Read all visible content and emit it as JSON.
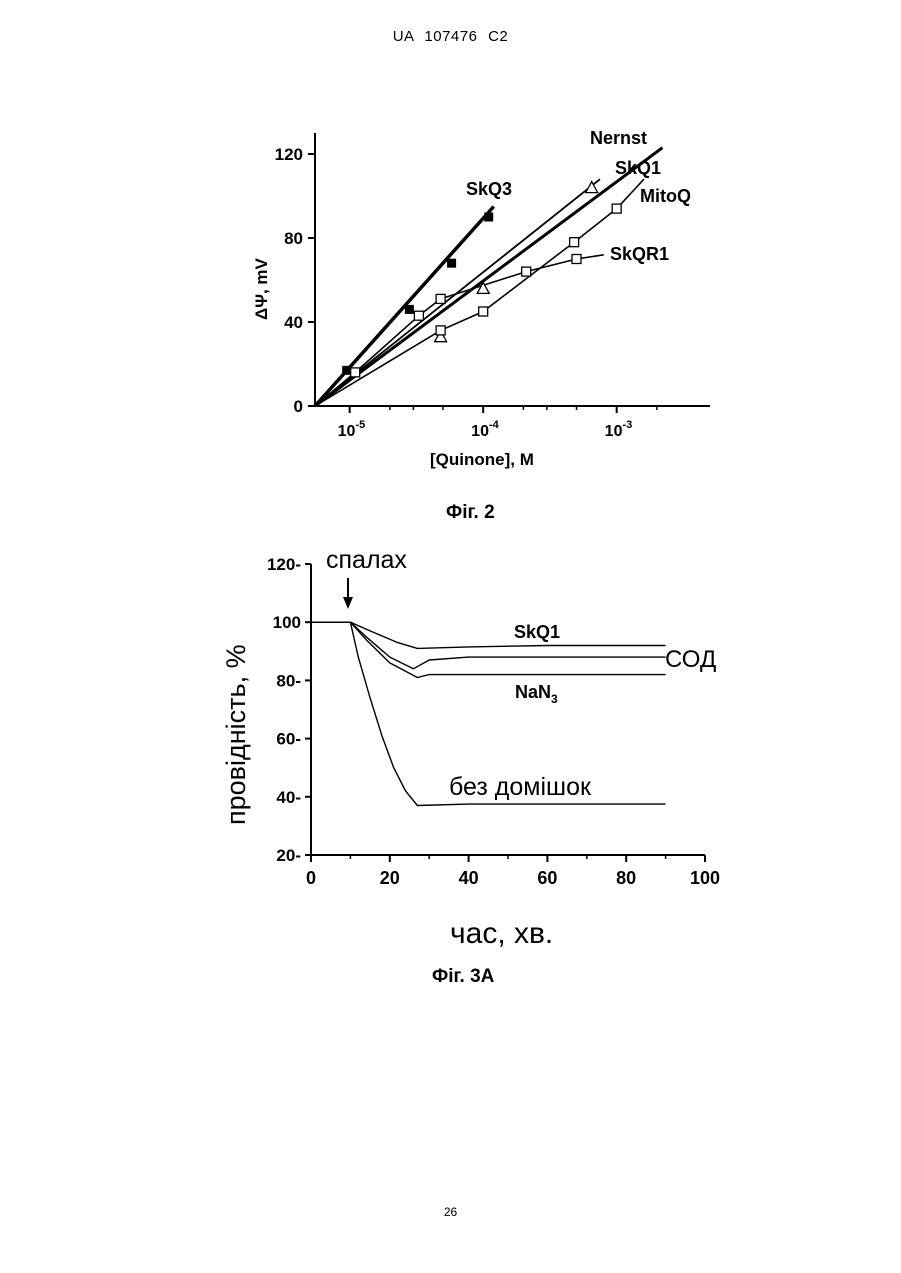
{
  "header": {
    "text": "UA   107476   C2"
  },
  "page_number": "26",
  "figures": {
    "fig2_caption": "Фіг. 2",
    "fig3a_caption": "Фіг. 3А"
  },
  "chart_data": [
    {
      "type": "scatter",
      "xscale": "log",
      "xlim": [
        5.5e-06,
        0.005
      ],
      "ylim": [
        0,
        130
      ],
      "ylabel": "ΔΨ, mV",
      "xlabel": "[Quinone], M",
      "x_ticks": [
        "10-5",
        "10-4",
        "10-3"
      ],
      "y_ticks": [
        "0",
        "40",
        "80",
        "120"
      ],
      "series": [
        {
          "name": "Nernst",
          "style": "line-thick",
          "x": [
            5.5e-06,
            0.0022
          ],
          "y": [
            0,
            123
          ]
        },
        {
          "name": "SkQ3",
          "style": "square-filled",
          "points": [
            [
              9.5e-06,
              17
            ],
            [
              2.8e-05,
              46
            ],
            [
              5.8e-05,
              68
            ],
            [
              0.00011,
              90
            ]
          ]
        },
        {
          "name": "SkQ1",
          "style": "triangle-open",
          "points": [
            [
              4.8e-05,
              33
            ],
            [
              0.0001,
              56
            ],
            [
              0.00065,
              104
            ]
          ]
        },
        {
          "name": "MitoQ",
          "style": "square-open",
          "points": [
            [
              4.8e-05,
              36
            ],
            [
              0.0001,
              45
            ],
            [
              0.00048,
              78
            ],
            [
              0.001,
              94
            ]
          ]
        },
        {
          "name": "SkQR1",
          "style": "square-open",
          "points": [
            [
              1.1e-05,
              16
            ],
            [
              3.3e-05,
              43
            ],
            [
              4.8e-05,
              51
            ],
            [
              0.00021,
              64
            ],
            [
              0.0005,
              70
            ]
          ]
        }
      ]
    },
    {
      "type": "line",
      "xlim": [
        0,
        100
      ],
      "ylim": [
        20,
        120
      ],
      "ylabel": "провідність, %",
      "xlabel": "час, хв.",
      "x_ticks": [
        "0",
        "20",
        "40",
        "60",
        "80",
        "100"
      ],
      "y_ticks": [
        "20-",
        "40-",
        "60-",
        "80-",
        "100",
        "120-"
      ],
      "annotation": "спалах",
      "series": [
        {
          "name": "SkQ1",
          "points": [
            [
              0,
              100
            ],
            [
              10,
              100
            ],
            [
              15,
              97
            ],
            [
              22,
              93
            ],
            [
              27,
              91
            ],
            [
              40,
              91.5
            ],
            [
              60,
              92
            ],
            [
              90,
              92
            ]
          ]
        },
        {
          "name": "СОД",
          "points": [
            [
              0,
              100
            ],
            [
              10,
              100
            ],
            [
              14,
              95
            ],
            [
              20,
              88
            ],
            [
              26,
              84
            ],
            [
              30,
              87
            ],
            [
              40,
              88
            ],
            [
              60,
              88
            ],
            [
              90,
              88
            ]
          ]
        },
        {
          "name": "NaN3",
          "points": [
            [
              0,
              100
            ],
            [
              10,
              100
            ],
            [
              14,
              94
            ],
            [
              20,
              86
            ],
            [
              27,
              81
            ],
            [
              30,
              82
            ],
            [
              50,
              82
            ],
            [
              90,
              82
            ]
          ]
        },
        {
          "name": "без домішок",
          "points": [
            [
              0,
              100
            ],
            [
              10,
              100
            ],
            [
              12,
              88
            ],
            [
              15,
              74
            ],
            [
              18,
              61
            ],
            [
              21,
              50
            ],
            [
              24,
              42
            ],
            [
              27,
              37
            ],
            [
              40,
              37.5
            ],
            [
              60,
              37.5
            ],
            [
              90,
              37.5
            ]
          ]
        }
      ]
    }
  ],
  "labels": {
    "nernst": "Nernst",
    "skq3": "SkQ3",
    "skq1_top": "SkQ1",
    "mitoq": "MitoQ",
    "skqr1": "SkQR1",
    "skq1_bottom": "SkQ1",
    "sod": "СОД",
    "nan3_base": "NaN",
    "nan3_sub": "3",
    "no_additive": "без домішок",
    "flash": "спалах"
  }
}
